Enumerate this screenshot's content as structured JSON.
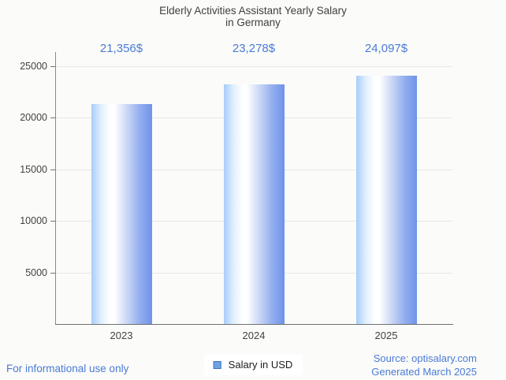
{
  "title": {
    "line1": "Elderly Activities Assistant Yearly Salary",
    "line2": "in Germany"
  },
  "chart_data": {
    "type": "bar",
    "title": "Elderly Activities Assistant Yearly Salary in Germany",
    "categories": [
      "2023",
      "2024",
      "2025"
    ],
    "series": [
      {
        "name": "Salary in USD",
        "values": [
          21356,
          23278,
          24097
        ],
        "value_labels": [
          "21,356$",
          "23,278$",
          "24,097$"
        ]
      }
    ],
    "xlabel": "",
    "ylabel": "",
    "ylim": [
      0,
      25000
    ],
    "yticks": [
      5000,
      10000,
      15000,
      20000,
      25000
    ],
    "ytick_labels": [
      "5000",
      "10000",
      "15000",
      "20000",
      "25000"
    ],
    "grid": true,
    "legend_position": "bottom"
  },
  "legend": {
    "label": "Salary in USD"
  },
  "footer": {
    "left": "For informational use only",
    "source_line1": "Source: optisalary.com",
    "source_line2": "Generated March 2025"
  },
  "colors": {
    "background": "#fbfbf9",
    "title_text": "#404040",
    "axis_text": "#424242",
    "accent_blue": "#4a7ad6",
    "gridline": "#e7e7e7",
    "axis_line": "#6f6f6f",
    "bar_light": "#a7cdf9",
    "bar_white": "#ffffff",
    "bar_dark": "#6e93e7",
    "legend_swatch_fill": "#6ea2e2",
    "legend_swatch_border": "#3f72c8"
  }
}
